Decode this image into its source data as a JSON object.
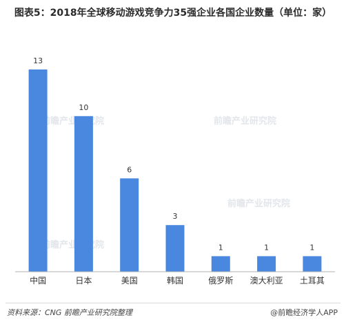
{
  "chart_data": {
    "type": "bar",
    "title": "图表5：2018年全球移动游戏竞争力35强企业各国企业数量（单位：家）",
    "categories": [
      "中国",
      "日本",
      "美国",
      "韩国",
      "俄罗斯",
      "澳大利亚",
      "土耳其"
    ],
    "values": [
      13,
      10,
      6,
      3,
      1,
      1,
      1
    ],
    "xlabel": "",
    "ylabel": "",
    "ylim": [
      0,
      13
    ],
    "grid": false,
    "legend": "none",
    "bar_color": "#4a88e0",
    "data_labels": true
  },
  "footer": {
    "source": "资料来源：CNG   前瞻产业研究院整理",
    "credit": "@前瞻经济学人APP"
  },
  "colors": {
    "bar": "#4a88e0",
    "axis": "#b0b0b0",
    "text": "#333333"
  }
}
